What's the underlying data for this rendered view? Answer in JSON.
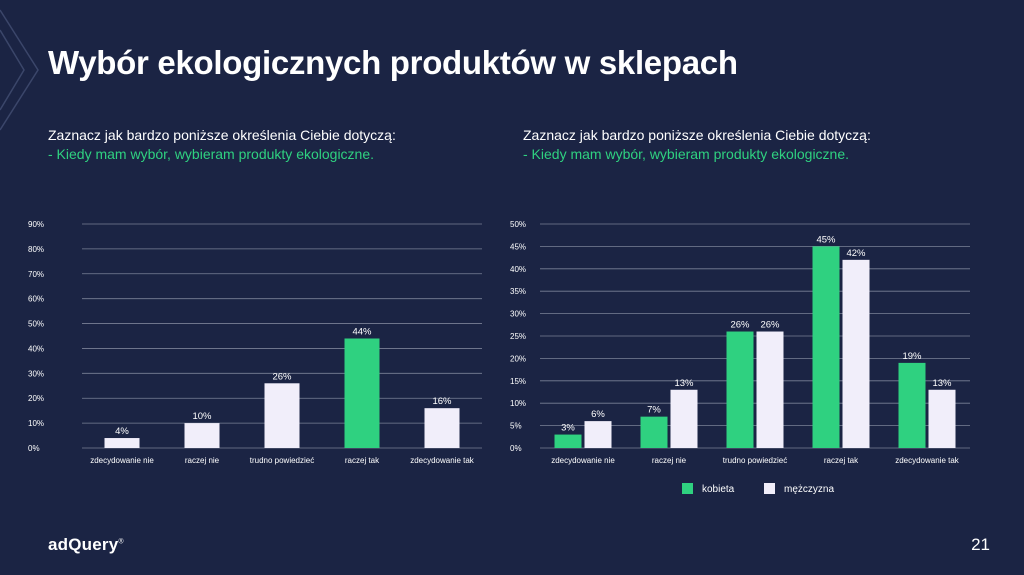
{
  "title": "Wybór ekologicznych produktów w sklepach",
  "footer": {
    "logo": "adQuery",
    "logo_mark": "®",
    "page_number": "21"
  },
  "colors": {
    "background": "#1b2444",
    "green": "#2fd180",
    "white_bar": "#f1eefa",
    "grid": "#7a8196"
  },
  "chart_data": [
    {
      "type": "bar",
      "question": "Zaznacz jak bardzo poniższe określenia Ciebie dotyczą:",
      "statement": "- Kiedy mam wybór, wybieram produkty ekologiczne.",
      "categories": [
        "zdecydowanie nie",
        "raczej nie",
        "trudno powiedzieć",
        "raczej tak",
        "zdecydowanie tak"
      ],
      "values": [
        4,
        10,
        26,
        44,
        16
      ],
      "labels": [
        "4%",
        "10%",
        "26%",
        "44%",
        "16%"
      ],
      "highlight": [
        false,
        false,
        false,
        true,
        false
      ],
      "ylim": [
        0,
        90
      ],
      "yticks": [
        "0%",
        "10%",
        "20%",
        "30%",
        "40%",
        "50%",
        "60%",
        "70%",
        "80%",
        "90%"
      ]
    },
    {
      "type": "bar",
      "question": "Zaznacz jak bardzo poniższe określenia Ciebie dotyczą:",
      "statement": "- Kiedy mam wybór, wybieram produkty ekologiczne.",
      "categories": [
        "zdecydowanie nie",
        "raczej nie",
        "trudno powiedzieć",
        "raczej tak",
        "zdecydowanie tak"
      ],
      "series": [
        {
          "name": "kobieta",
          "color": "#2fd180",
          "values": [
            3,
            7,
            26,
            45,
            19
          ],
          "labels": [
            "3%",
            "7%",
            "26%",
            "45%",
            "19%"
          ]
        },
        {
          "name": "mężczyzna",
          "color": "#f1eefa",
          "values": [
            6,
            13,
            26,
            42,
            13
          ],
          "labels": [
            "6%",
            "13%",
            "26%",
            "42%",
            "13%"
          ]
        }
      ],
      "ylim": [
        0,
        50
      ],
      "yticks": [
        "0%",
        "5%",
        "10%",
        "15%",
        "20%",
        "25%",
        "30%",
        "35%",
        "40%",
        "45%",
        "50%"
      ],
      "legend": "bottom"
    }
  ]
}
